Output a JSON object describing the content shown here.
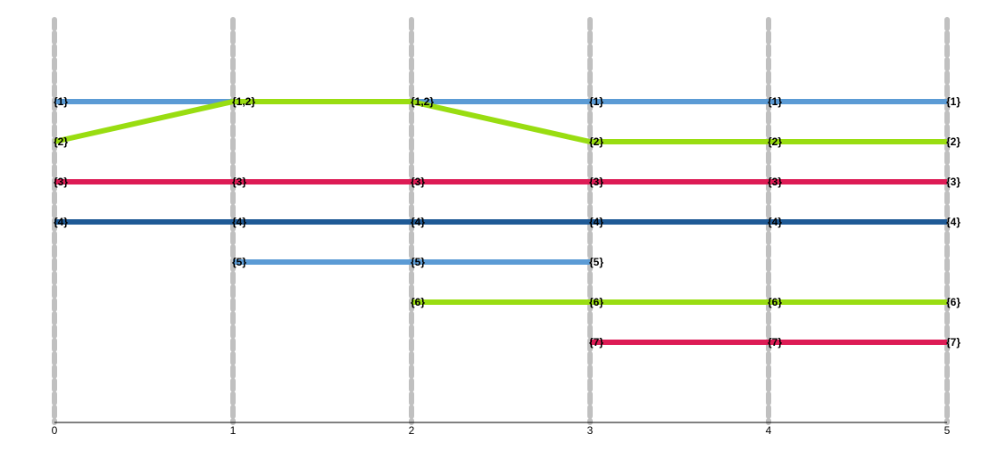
{
  "chart_data": {
    "type": "line",
    "title": "",
    "xlabel": "",
    "ylabel": "",
    "xlim": [
      0,
      5
    ],
    "x_ticks": [
      "0",
      "1",
      "2",
      "3",
      "4",
      "5"
    ],
    "grid": "vertical-dashed",
    "colors": {
      "light_blue": "#5b9bd5",
      "lime": "#99dd11",
      "crimson": "#dd1b55",
      "navy": "#1f5a96",
      "grid": "#c0c0c0",
      "axis": "#000000"
    },
    "lanes": [
      {
        "points": [
          [
            0,
            1
          ],
          [
            1,
            1
          ],
          [
            2,
            1
          ],
          [
            3,
            1
          ],
          [
            4,
            1
          ],
          [
            5,
            1
          ]
        ],
        "color": "light_blue"
      },
      {
        "points": [
          [
            0,
            2
          ],
          [
            1,
            1
          ],
          [
            2,
            1
          ],
          [
            3,
            2
          ],
          [
            4,
            2
          ],
          [
            5,
            2
          ]
        ],
        "color": "lime"
      },
      {
        "points": [
          [
            0,
            3
          ],
          [
            1,
            3
          ],
          [
            2,
            3
          ],
          [
            3,
            3
          ],
          [
            4,
            3
          ],
          [
            5,
            3
          ]
        ],
        "color": "crimson"
      },
      {
        "points": [
          [
            0,
            4
          ],
          [
            1,
            4
          ],
          [
            2,
            4
          ],
          [
            3,
            4
          ],
          [
            4,
            4
          ],
          [
            5,
            4
          ]
        ],
        "color": "navy"
      },
      {
        "points": [
          [
            1,
            5
          ],
          [
            2,
            5
          ],
          [
            3,
            5
          ]
        ],
        "color": "light_blue"
      },
      {
        "points": [
          [
            2,
            6
          ],
          [
            3,
            6
          ],
          [
            4,
            6
          ],
          [
            5,
            6
          ]
        ],
        "color": "lime"
      },
      {
        "points": [
          [
            3,
            7
          ],
          [
            4,
            7
          ],
          [
            5,
            7
          ]
        ],
        "color": "crimson"
      }
    ],
    "node_labels": [
      {
        "x": 0,
        "row": 1,
        "text": "{1}"
      },
      {
        "x": 0,
        "row": 2,
        "text": "{2}"
      },
      {
        "x": 0,
        "row": 3,
        "text": "{3}"
      },
      {
        "x": 0,
        "row": 4,
        "text": "{4}"
      },
      {
        "x": 1,
        "row": 1,
        "text": "{1,2}"
      },
      {
        "x": 1,
        "row": 3,
        "text": "{3}"
      },
      {
        "x": 1,
        "row": 4,
        "text": "{4}"
      },
      {
        "x": 1,
        "row": 5,
        "text": "{5}"
      },
      {
        "x": 2,
        "row": 1,
        "text": "{1,2}"
      },
      {
        "x": 2,
        "row": 3,
        "text": "{3}"
      },
      {
        "x": 2,
        "row": 4,
        "text": "{4}"
      },
      {
        "x": 2,
        "row": 5,
        "text": "{5}"
      },
      {
        "x": 2,
        "row": 6,
        "text": "{6}"
      },
      {
        "x": 3,
        "row": 1,
        "text": "{1}"
      },
      {
        "x": 3,
        "row": 2,
        "text": "{2}"
      },
      {
        "x": 3,
        "row": 3,
        "text": "{3}"
      },
      {
        "x": 3,
        "row": 4,
        "text": "{4}"
      },
      {
        "x": 3,
        "row": 5,
        "text": "{5}"
      },
      {
        "x": 3,
        "row": 6,
        "text": "{6}"
      },
      {
        "x": 3,
        "row": 7,
        "text": "{7}"
      },
      {
        "x": 4,
        "row": 1,
        "text": "{1}"
      },
      {
        "x": 4,
        "row": 2,
        "text": "{2}"
      },
      {
        "x": 4,
        "row": 3,
        "text": "{3}"
      },
      {
        "x": 4,
        "row": 4,
        "text": "{4}"
      },
      {
        "x": 4,
        "row": 6,
        "text": "{6}"
      },
      {
        "x": 4,
        "row": 7,
        "text": "{7}"
      },
      {
        "x": 5,
        "row": 1,
        "text": "{1}"
      },
      {
        "x": 5,
        "row": 2,
        "text": "{2}"
      },
      {
        "x": 5,
        "row": 3,
        "text": "{3}"
      },
      {
        "x": 5,
        "row": 4,
        "text": "{4}"
      },
      {
        "x": 5,
        "row": 6,
        "text": "{6}"
      },
      {
        "x": 5,
        "row": 7,
        "text": "{7}"
      }
    ]
  }
}
